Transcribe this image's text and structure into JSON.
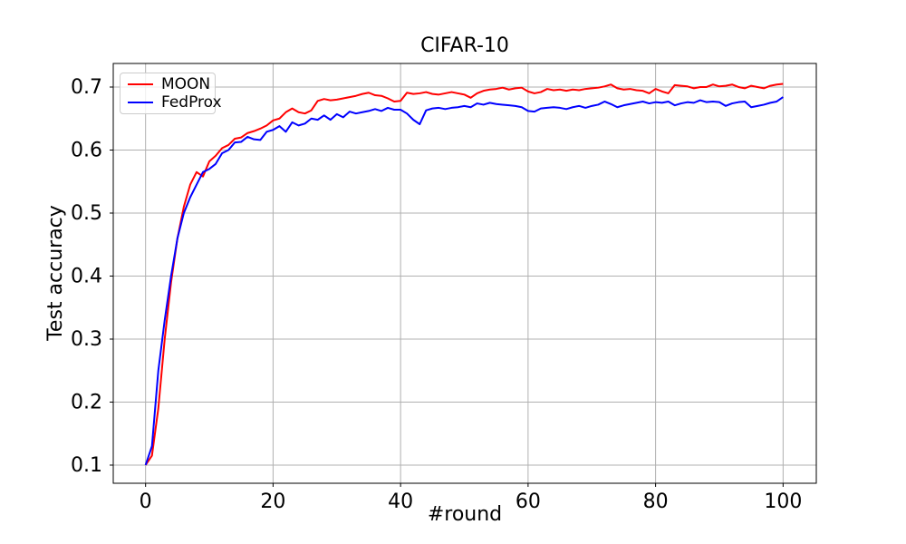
{
  "chart_data": {
    "type": "line",
    "title": "CIFAR-10",
    "xlabel": "#round",
    "ylabel": "Test accuracy",
    "xlim": [
      -5.07,
      105.21
    ],
    "ylim": [
      0.0712,
      0.7374
    ],
    "xticks": [
      0,
      20,
      40,
      60,
      80,
      100
    ],
    "yticks": [
      0.1,
      0.2,
      0.3,
      0.4,
      0.5,
      0.6,
      0.7
    ],
    "grid": true,
    "grid_color": "#b0b0b0",
    "spine_color": "#000000",
    "background_color": "#ffffff",
    "legend_position": "upper left",
    "x_range": [
      0,
      100,
      1
    ],
    "series": [
      {
        "name": "MOON",
        "color": "#ff0000",
        "values": [
          0.1,
          0.115,
          0.19,
          0.3,
          0.39,
          0.46,
          0.51,
          0.545,
          0.565,
          0.558,
          0.582,
          0.591,
          0.603,
          0.608,
          0.618,
          0.62,
          0.627,
          0.63,
          0.634,
          0.639,
          0.647,
          0.65,
          0.66,
          0.666,
          0.66,
          0.658,
          0.663,
          0.678,
          0.681,
          0.679,
          0.68,
          0.682,
          0.684,
          0.686,
          0.689,
          0.691,
          0.687,
          0.686,
          0.682,
          0.677,
          0.678,
          0.691,
          0.689,
          0.69,
          0.692,
          0.689,
          0.688,
          0.69,
          0.692,
          0.69,
          0.688,
          0.683,
          0.69,
          0.694,
          0.696,
          0.697,
          0.699,
          0.696,
          0.698,
          0.699,
          0.693,
          0.69,
          0.692,
          0.697,
          0.695,
          0.696,
          0.694,
          0.696,
          0.695,
          0.697,
          0.698,
          0.699,
          0.701,
          0.704,
          0.698,
          0.696,
          0.697,
          0.695,
          0.694,
          0.69,
          0.697,
          0.693,
          0.69,
          0.703,
          0.702,
          0.701,
          0.698,
          0.7,
          0.7,
          0.704,
          0.701,
          0.702,
          0.704,
          0.7,
          0.698,
          0.702,
          0.7,
          0.698,
          0.702,
          0.704,
          0.705
        ]
      },
      {
        "name": "FedProx",
        "color": "#0000ff",
        "values": [
          0.1,
          0.13,
          0.25,
          0.33,
          0.4,
          0.46,
          0.5,
          0.525,
          0.545,
          0.565,
          0.57,
          0.578,
          0.595,
          0.6,
          0.612,
          0.613,
          0.621,
          0.617,
          0.616,
          0.629,
          0.632,
          0.638,
          0.629,
          0.644,
          0.639,
          0.642,
          0.65,
          0.648,
          0.655,
          0.648,
          0.657,
          0.652,
          0.661,
          0.658,
          0.66,
          0.662,
          0.665,
          0.662,
          0.667,
          0.664,
          0.664,
          0.658,
          0.648,
          0.641,
          0.663,
          0.666,
          0.667,
          0.665,
          0.667,
          0.668,
          0.67,
          0.668,
          0.674,
          0.672,
          0.675,
          0.673,
          0.672,
          0.671,
          0.67,
          0.668,
          0.662,
          0.661,
          0.666,
          0.667,
          0.668,
          0.667,
          0.665,
          0.668,
          0.67,
          0.667,
          0.67,
          0.672,
          0.677,
          0.673,
          0.668,
          0.671,
          0.673,
          0.675,
          0.677,
          0.674,
          0.676,
          0.675,
          0.677,
          0.671,
          0.674,
          0.676,
          0.675,
          0.679,
          0.676,
          0.677,
          0.676,
          0.67,
          0.674,
          0.676,
          0.677,
          0.668,
          0.67,
          0.672,
          0.675,
          0.677,
          0.684
        ]
      }
    ]
  }
}
